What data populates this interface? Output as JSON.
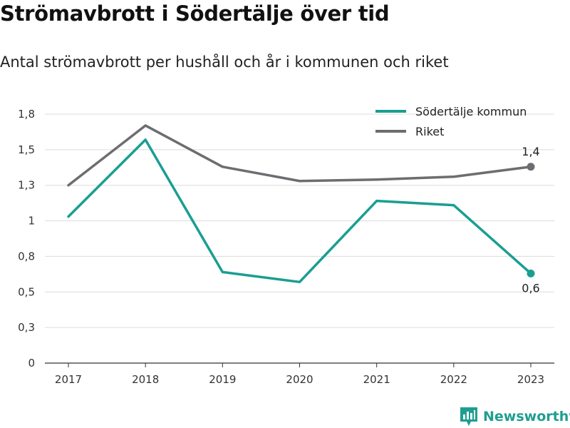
{
  "chart_data": {
    "type": "line",
    "title": "Strömavbrott i Södertälje över tid",
    "subtitle": "Antal strömavbrott per hushåll och år i kommunen och riket",
    "x": [
      "2017",
      "2018",
      "2019",
      "2020",
      "2021",
      "2022",
      "2023"
    ],
    "y_ticks": [
      {
        "value": 0,
        "label": "0"
      },
      {
        "value": 0.25,
        "label": "0,3"
      },
      {
        "value": 0.5,
        "label": "0,5"
      },
      {
        "value": 0.75,
        "label": "0,8"
      },
      {
        "value": 1.0,
        "label": "1"
      },
      {
        "value": 1.25,
        "label": "1,3"
      },
      {
        "value": 1.5,
        "label": "1,5"
      },
      {
        "value": 1.75,
        "label": "1,8"
      }
    ],
    "ylim": [
      0,
      1.75
    ],
    "grid": true,
    "legend_position": "top-right",
    "series": [
      {
        "name": "Södertälje kommun",
        "color": "#1a9e92",
        "values": [
          1.03,
          1.57,
          0.64,
          0.57,
          1.14,
          1.11,
          0.63
        ],
        "end_label": "0,6",
        "end_label_position": "below"
      },
      {
        "name": "Riket",
        "color": "#6d6d71",
        "values": [
          1.25,
          1.67,
          1.38,
          1.28,
          1.29,
          1.31,
          1.38
        ],
        "end_label": "1,4",
        "end_label_position": "above"
      }
    ]
  },
  "brand": {
    "name": "Newsworthy",
    "logo_icon": "newsworthy-bar-chart-logo",
    "color": "#1f9e8f"
  }
}
